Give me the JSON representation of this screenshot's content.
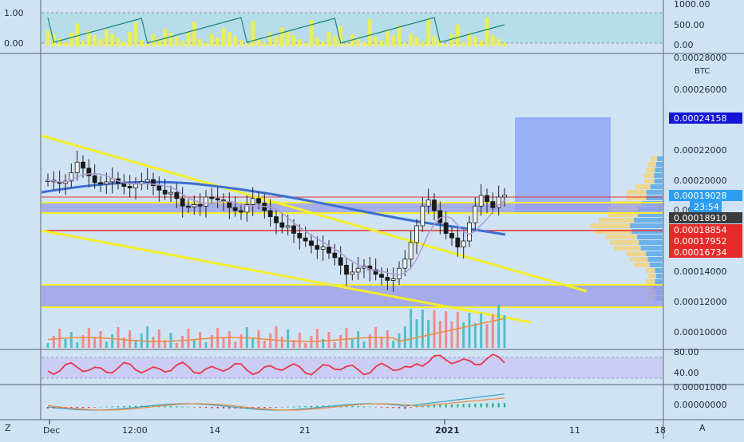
{
  "colors": {
    "background": "#cfe3f5",
    "axis_text": "#1f2a36",
    "up_candle": "#2b2b2b",
    "down_candle": "#1a1a1a",
    "trendline": "#f5ee2a",
    "resistance": "#e8302c",
    "ma_long": "#3d6fd1",
    "ma_short": "#b09ad6",
    "zone_fill": "#9a9ce8",
    "target_box": "#8fa7f7",
    "vol_up": "#4fc0c8",
    "vol_down": "#f28a8a",
    "vol_ma": "#f08a3c",
    "rsi": "#e8384a",
    "macd": "#3aa3c9",
    "signal": "#f08a3c"
  },
  "top_panel": {
    "left_ticks": [
      "1.00",
      "0.00"
    ],
    "right_ticks": [
      "1000.00",
      "500.00",
      "0.00"
    ]
  },
  "price_axis": {
    "unit_label": "BTC",
    "top_partial_label": "0.00028000",
    "ticks": [
      "0.00026000",
      "0.00022000",
      "0.00020000",
      "0.00014000",
      "0.00012000",
      "0.00010000"
    ],
    "partial_tick": "0.000"
  },
  "price_badges": [
    {
      "text": "0.00024158",
      "bg": "#1515d6",
      "fg": "#ffffff"
    },
    {
      "text": "0.00019028",
      "bg": "#2c9df0",
      "fg": "#ffffff"
    },
    {
      "text": "23:54",
      "bg": "#2c9df0",
      "fg": "#ffffff"
    },
    {
      "text": "0.00018910",
      "bg": "#3b3b3b",
      "fg": "#ffffff"
    },
    {
      "text": "0.00018854",
      "bg": "#e62a2a",
      "fg": "#ffffff"
    },
    {
      "text": "0.00017952",
      "bg": "#e62a2a",
      "fg": "#ffffff"
    },
    {
      "text": "0.00016734",
      "bg": "#e62a2a",
      "fg": "#ffffff"
    }
  ],
  "rsi_axis": {
    "ticks": [
      "80.00",
      "40.00"
    ]
  },
  "macd_axis": {
    "ticks": [
      "0.00001000",
      "0.00000000"
    ]
  },
  "time_axis": {
    "labels": [
      "Dec",
      "12:00",
      "14",
      "21",
      "2021",
      "11",
      "18"
    ]
  },
  "corner_labels": {
    "left": "Z",
    "right": "A"
  },
  "chart_data": {
    "type": "candlestick",
    "title": "",
    "price_unit": "BTC",
    "timeframe_labels": [
      "Dec",
      "12:00",
      "14",
      "21",
      "2021",
      "11",
      "18"
    ],
    "candles_close_approx": [
      0.0002,
      0.000199,
      0.000198,
      0.0001995,
      0.000205,
      0.000212,
      0.000208,
      0.000203,
      0.0001985,
      0.0001975,
      0.000199,
      0.000201,
      0.000198,
      0.000196,
      0.000195,
      0.0001975,
      0.000199,
      0.0002005,
      0.0001965,
      0.0001935,
      0.000191,
      0.000192,
      0.000188,
      0.000183,
      0.0001825,
      0.000184,
      0.000183,
      0.000189,
      0.000188,
      0.000187,
      0.000186,
      0.000182,
      0.00018,
      0.000179,
      0.000184,
      0.000188,
      0.000185,
      0.00018,
      0.000176,
      0.000172,
      0.000169,
      0.00017,
      0.000165,
      0.000162,
      0.00016,
      0.000157,
      0.0001545,
      0.000156,
      0.000152,
      0.000149,
      0.000144,
      0.000138,
      0.0001395,
      0.000142,
      0.0001435,
      0.000141,
      0.000138,
      0.000136,
      0.000134,
      0.000135,
      0.000142,
      0.000148,
      0.000159,
      0.00017,
      0.000183,
      0.000187,
      0.00018,
      0.000172,
      0.000165,
      0.000162,
      0.000156,
      0.00016,
      0.000172,
      0.000183,
      0.00019,
      0.000186,
      0.000182,
      0.000189,
      0.0001903
    ],
    "levels": {
      "target": 0.00024158,
      "current": 0.00019028,
      "resistance_zone": [
        0.00018854,
        0.00019028
      ],
      "support_1": 0.00017952,
      "support_2": 0.00016734,
      "demand_zone": [
        0.000116,
        0.000131
      ]
    },
    "countdown": "23:54",
    "rsi_range": [
      40,
      80
    ],
    "macd_zero": 0.0
  }
}
